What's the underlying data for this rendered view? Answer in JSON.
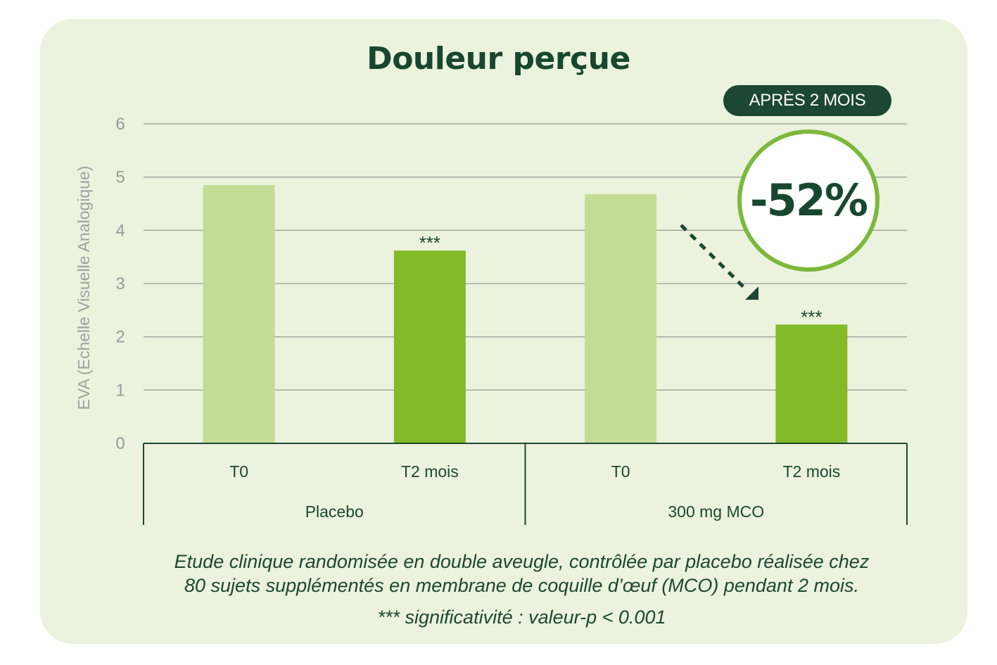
{
  "title": "Douleur perçue",
  "badge": "APRÈS 2 MOIS",
  "callout": "-52%",
  "footnote": {
    "line1": "Etude clinique randomisée en double aveugle, contrôlée par placebo réalisée chez",
    "line2": "80 sujets supplémentés en membrane de coquille d’œuf (MCO) pendant 2 mois.",
    "line3": "*** significativité :  valeur-p < 0.001"
  },
  "colors": {
    "background": "#ebf2de",
    "dark_green": "#1c4733",
    "bar_t0": "#c5dc95",
    "bar_t2": "#83ba28",
    "circle_ring": "#7cb83a"
  },
  "chart_data": {
    "type": "bar",
    "ylabel": "EVA (Echelle Visuelle Analogique)",
    "ylim": [
      0,
      6
    ],
    "yticks": [
      0,
      1,
      2,
      3,
      4,
      5,
      6
    ],
    "grid": true,
    "groups": [
      {
        "name": "Placebo",
        "bars": [
          {
            "label": "T0",
            "value": 4.85,
            "annotation": ""
          },
          {
            "label": "T2 mois",
            "value": 3.62,
            "annotation": "***"
          }
        ]
      },
      {
        "name": "300 mg MCO",
        "bars": [
          {
            "label": "T0",
            "value": 4.68,
            "annotation": ""
          },
          {
            "label": "T2 mois",
            "value": 2.23,
            "annotation": "***"
          }
        ]
      }
    ]
  }
}
